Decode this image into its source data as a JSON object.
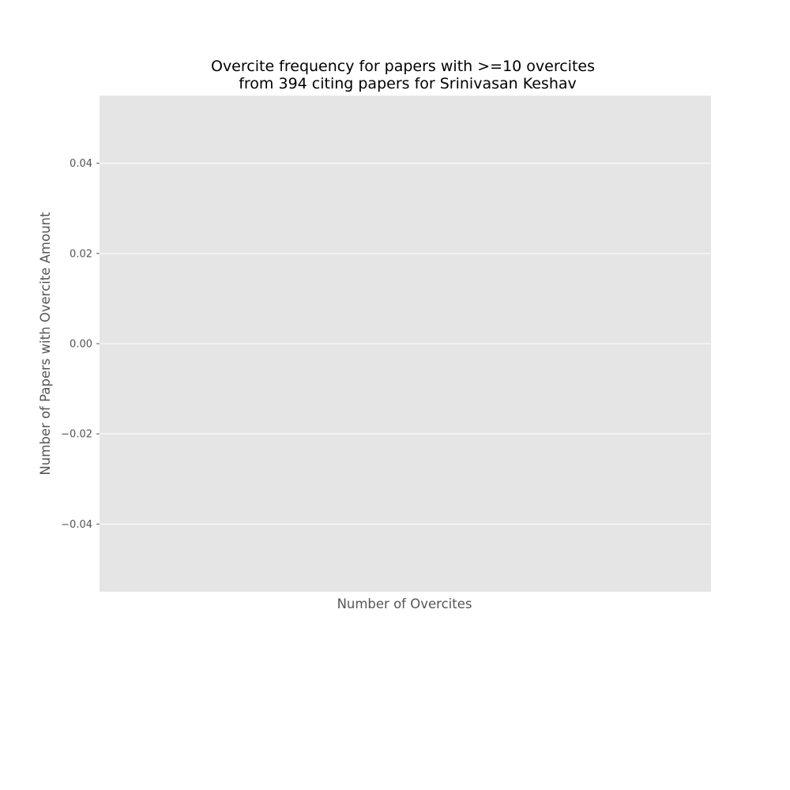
{
  "chart_data": {
    "type": "bar",
    "title_lines": [
      "Overcite frequency for papers with >=10 overcites",
      "from 394 citing papers for Srinivasan Keshav"
    ],
    "xlabel": "Number of Overcites",
    "ylabel": "Number of Papers with Overcite Amount",
    "categories": [],
    "values": [],
    "ylim": [
      -0.055,
      0.055
    ],
    "yticks": [
      -0.04,
      -0.02,
      0.0,
      0.02,
      0.04
    ],
    "ytick_labels": [
      "−0.04",
      "−0.02",
      "0.00",
      "0.02",
      "0.04"
    ],
    "grid": true,
    "colors": {
      "plot_background": "#e5e5e5",
      "grid": "#ffffff",
      "text": "#555555"
    }
  }
}
